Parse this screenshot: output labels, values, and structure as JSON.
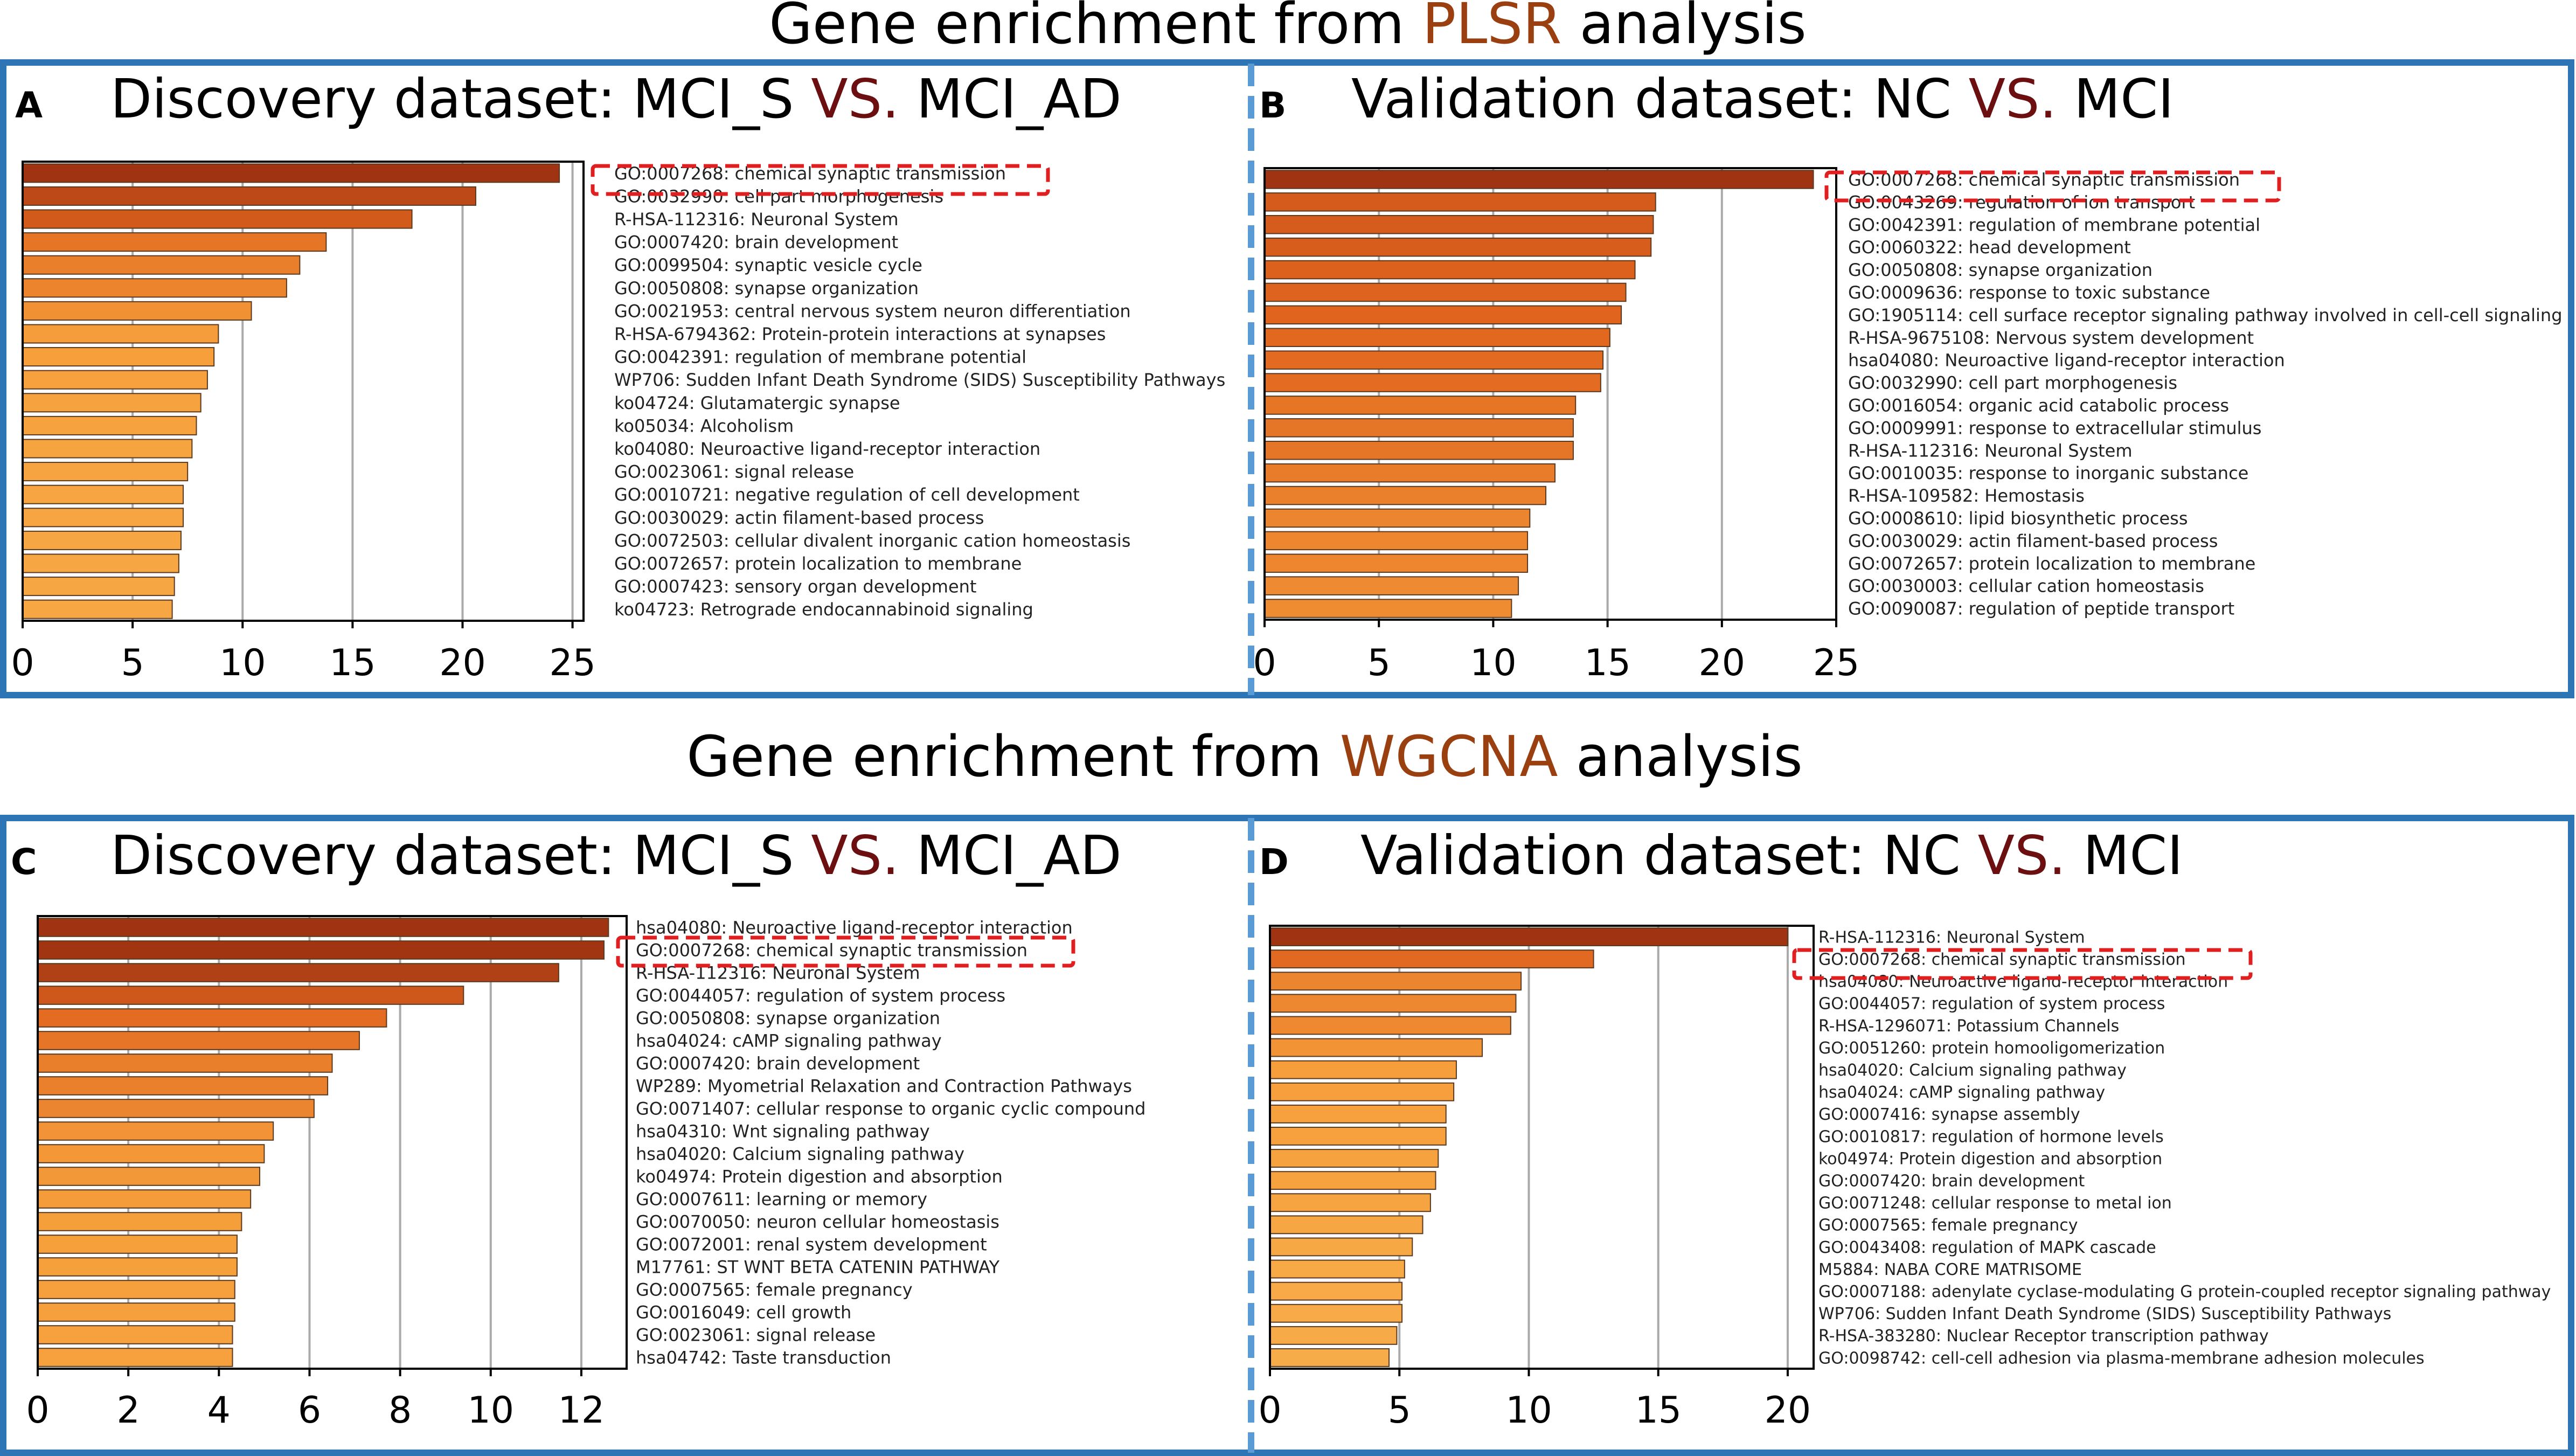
{
  "colors": {
    "frame": "#2E75B6",
    "divider": "#5B9BD5",
    "accent_brown": "#9A3F10",
    "vs_color": "#6B0F10",
    "highlight_box": "#E02020",
    "bar_stroke": "#5A3A20",
    "grid": "#aaaaaa"
  },
  "sections": {
    "plsr": {
      "prefix": "Gene enrichment from ",
      "method": "PLSR",
      "suffix": " analysis"
    },
    "wgcna": {
      "prefix": "Gene enrichment from ",
      "method": "WGCNA",
      "suffix": " analysis"
    }
  },
  "chart_data": [
    {
      "type": "bar",
      "orientation": "horizontal",
      "panel": "A",
      "title_prefix": "Discovery dataset: MCI_S",
      "title_vs": "VS.",
      "title_suffix": "MCI_AD",
      "xlim": [
        0,
        25.5
      ],
      "xticks": [
        0,
        5,
        10,
        15,
        20,
        25
      ],
      "highlight_index": 0,
      "categories": [
        "GO:0007268: chemical synaptic transmission",
        "GO:0032990: cell part morphogenesis",
        "R-HSA-112316: Neuronal System",
        "GO:0007420: brain development",
        "GO:0099504: synaptic vesicle cycle",
        "GO:0050808: synapse organization",
        "GO:0021953: central nervous system neuron differentiation",
        "R-HSA-6794362: Protein-protein interactions at synapses",
        "GO:0042391: regulation of membrane potential",
        "WP706: Sudden Infant Death Syndrome (SIDS) Susceptibility Pathways",
        "ko04724: Glutamatergic synapse",
        "ko05034: Alcoholism",
        "ko04080: Neuroactive ligand-receptor interaction",
        "GO:0023061: signal release",
        "GO:0010721: negative regulation of cell development",
        "GO:0030029: actin filament-based process",
        "GO:0072503: cellular divalent inorganic cation homeostasis",
        "GO:0072657: protein localization to membrane",
        "GO:0007423: sensory organ development",
        "ko04723: Retrograde endocannabinoid signaling"
      ],
      "values": [
        24.4,
        20.6,
        17.7,
        13.8,
        12.6,
        12.0,
        10.4,
        8.9,
        8.7,
        8.4,
        8.1,
        7.9,
        7.7,
        7.5,
        7.3,
        7.3,
        7.2,
        7.1,
        6.9,
        6.8
      ]
    },
    {
      "type": "bar",
      "orientation": "horizontal",
      "panel": "B",
      "title_prefix": "Validation dataset: NC",
      "title_vs": "VS.",
      "title_suffix": "MCI",
      "xlim": [
        0,
        25
      ],
      "xticks": [
        0,
        5,
        10,
        15,
        20,
        25
      ],
      "highlight_index": 0,
      "categories": [
        "GO:0007268: chemical synaptic transmission",
        "GO:0043269: regulation of ion transport",
        "GO:0042391: regulation of membrane potential",
        "GO:0060322: head development",
        "GO:0050808: synapse organization",
        "GO:0009636: response to toxic substance",
        "GO:1905114: cell surface receptor signaling pathway involved in cell-cell signaling",
        "R-HSA-9675108: Nervous system development",
        "hsa04080: Neuroactive ligand-receptor interaction",
        "GO:0032990: cell part morphogenesis",
        "GO:0016054: organic acid catabolic process",
        "GO:0009991: response to extracellular stimulus",
        "R-HSA-112316: Neuronal System",
        "GO:0010035: response to inorganic substance",
        "R-HSA-109582: Hemostasis",
        "GO:0008610: lipid biosynthetic process",
        "GO:0030029: actin filament-based process",
        "GO:0072657: protein localization to membrane",
        "GO:0030003: cellular cation homeostasis",
        "GO:0090087: regulation of peptide transport"
      ],
      "values": [
        24.0,
        17.1,
        17.0,
        16.9,
        16.2,
        15.8,
        15.6,
        15.1,
        14.8,
        14.7,
        13.6,
        13.5,
        13.5,
        12.7,
        12.3,
        11.6,
        11.5,
        11.5,
        11.1,
        10.8
      ]
    },
    {
      "type": "bar",
      "orientation": "horizontal",
      "panel": "C",
      "title_prefix": "Discovery dataset: MCI_S",
      "title_vs": "VS.",
      "title_suffix": "MCI_AD",
      "xlim": [
        0,
        13
      ],
      "xticks": [
        0,
        2,
        4,
        6,
        8,
        10,
        12
      ],
      "highlight_index": 1,
      "categories": [
        "hsa04080: Neuroactive ligand-receptor interaction",
        "GO:0007268: chemical synaptic transmission",
        "R-HSA-112316: Neuronal System",
        "GO:0044057: regulation of system process",
        "GO:0050808: synapse organization",
        "hsa04024: cAMP signaling pathway",
        "GO:0007420: brain development",
        "WP289: Myometrial Relaxation and Contraction Pathways",
        "GO:0071407: cellular response to organic cyclic compound",
        "hsa04310: Wnt signaling pathway",
        "hsa04020: Calcium signaling pathway",
        "ko04974: Protein digestion and absorption",
        "GO:0007611: learning or memory",
        "GO:0070050: neuron cellular homeostasis",
        "GO:0072001: renal system development",
        "M17761: ST WNT BETA CATENIN PATHWAY",
        "GO:0007565: female pregnancy",
        "GO:0016049: cell growth",
        "GO:0023061: signal release",
        "hsa04742: Taste transduction"
      ],
      "values": [
        12.6,
        12.5,
        11.5,
        9.4,
        7.7,
        7.1,
        6.5,
        6.4,
        6.1,
        5.2,
        5.0,
        4.9,
        4.7,
        4.5,
        4.4,
        4.4,
        4.35,
        4.35,
        4.3,
        4.3
      ]
    },
    {
      "type": "bar",
      "orientation": "horizontal",
      "panel": "D",
      "title_prefix": "Validation dataset: NC",
      "title_vs": "VS.",
      "title_suffix": "MCI",
      "xlim": [
        0,
        21
      ],
      "xticks": [
        0,
        5,
        10,
        15,
        20
      ],
      "highlight_index": 1,
      "categories": [
        "R-HSA-112316: Neuronal System",
        "GO:0007268: chemical synaptic transmission",
        "hsa04080: Neuroactive ligand-receptor interaction",
        "GO:0044057: regulation of system process",
        "R-HSA-1296071: Potassium Channels",
        "GO:0051260: protein homooligomerization",
        "hsa04020: Calcium signaling pathway",
        "hsa04024: cAMP signaling pathway",
        "GO:0007416: synapse assembly",
        "GO:0010817: regulation of hormone levels",
        "ko04974: Protein digestion and absorption",
        "GO:0007420: brain development",
        "GO:0071248: cellular response to metal ion",
        "GO:0007565: female pregnancy",
        "GO:0043408: regulation of MAPK cascade",
        "M5884: NABA CORE MATRISOME",
        "GO:0007188: adenylate cyclase-modulating G protein-coupled receptor signaling pathway",
        "WP706: Sudden Infant Death Syndrome (SIDS) Susceptibility Pathways",
        "R-HSA-383280: Nuclear Receptor transcription pathway",
        "GO:0098742: cell-cell adhesion via plasma-membrane adhesion molecules"
      ],
      "values": [
        20.0,
        12.5,
        9.7,
        9.5,
        9.3,
        8.2,
        7.2,
        7.1,
        6.8,
        6.8,
        6.5,
        6.4,
        6.2,
        5.9,
        5.5,
        5.2,
        5.1,
        5.1,
        4.9,
        4.6
      ]
    }
  ]
}
